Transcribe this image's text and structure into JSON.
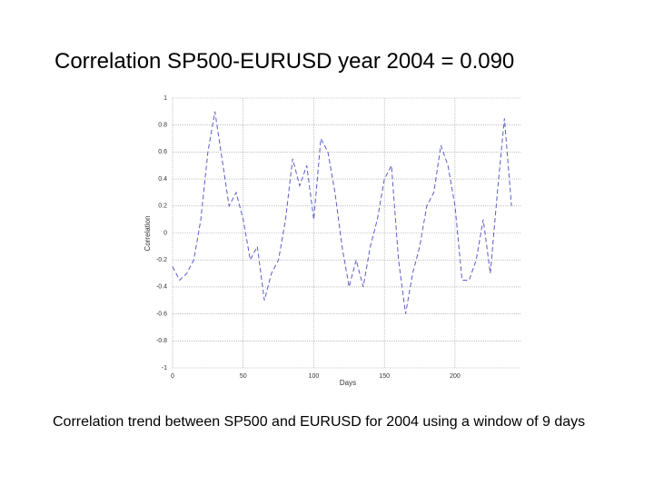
{
  "chart_data": {
    "type": "line",
    "title": "Correlation SP500-EURUSD year 2004 = 0.090",
    "caption": "Correlation trend between SP500 and EURUSD for 2004 using a window of 9 days",
    "xlabel": "Days",
    "ylabel": "Correlation",
    "x": [
      0,
      5,
      10,
      15,
      20,
      25,
      30,
      35,
      40,
      45,
      50,
      55,
      60,
      65,
      70,
      75,
      80,
      85,
      90,
      95,
      100,
      105,
      110,
      115,
      120,
      125,
      130,
      135,
      140,
      145,
      150,
      155,
      160,
      165,
      170,
      175,
      180,
      185,
      190,
      195,
      200,
      205,
      210,
      215,
      220,
      225,
      230,
      235,
      240
    ],
    "series": [
      {
        "name": "Correlation",
        "color": "#5b5bc8",
        "values": [
          -0.25,
          -0.35,
          -0.3,
          -0.2,
          0.1,
          0.6,
          0.9,
          0.55,
          0.2,
          0.3,
          0.1,
          -0.2,
          -0.1,
          -0.5,
          -0.3,
          -0.2,
          0.1,
          0.55,
          0.35,
          0.5,
          0.1,
          0.7,
          0.6,
          0.3,
          -0.1,
          -0.4,
          -0.2,
          -0.4,
          -0.1,
          0.1,
          0.4,
          0.5,
          -0.2,
          -0.6,
          -0.3,
          -0.1,
          0.2,
          0.3,
          0.65,
          0.5,
          0.2,
          -0.35,
          -0.35,
          -0.2,
          0.1,
          -0.3,
          0.3,
          0.85,
          0.2
        ]
      }
    ],
    "xlim": [
      0,
      247
    ],
    "ylim": [
      -1,
      1
    ],
    "xticks": [
      0,
      50,
      100,
      150,
      200
    ],
    "yticks": [
      -1,
      -0.8,
      -0.6,
      -0.4,
      -0.2,
      0,
      0.2,
      0.4,
      0.6,
      0.8,
      1
    ],
    "grid": true
  }
}
